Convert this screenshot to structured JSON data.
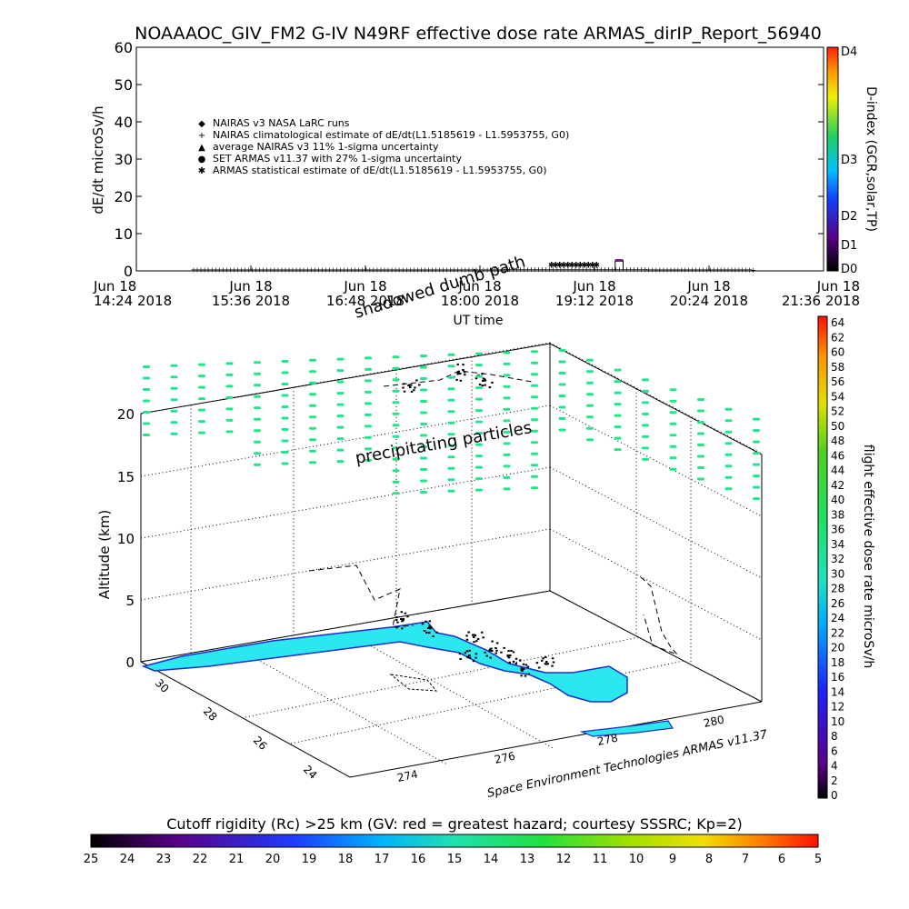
{
  "header": {
    "title": "NOAAAOC_GIV_FM2 G-IV    N49RF   effective dose rate ARMAS_dirIP_Report_56940"
  },
  "top_panel": {
    "ylabel": "dE/dt microSv/h",
    "xlabel": "UT time",
    "dindex_label": "D-index (GCR,solar,TP)",
    "dindex_ticks": [
      "D4",
      "D3",
      "D2",
      "D1",
      "D0"
    ],
    "legend": [
      {
        "symbol": "◆",
        "text": "NAIRAS v3 NASA LaRC runs"
      },
      {
        "symbol": "+",
        "text": "NAIRAS climatological estimate of dE/dt(L1.5185619 - L1.5953755, G0)"
      },
      {
        "symbol": "▲",
        "text": "average NAIRAS v3 11% 1-sigma uncertainty"
      },
      {
        "symbol": "●",
        "text": "SET ARMAS v11.37 with 27% 1-sigma uncertainty"
      },
      {
        "symbol": "✱",
        "text": "ARMAS statistical estimate of dE/dt(L1.5185619 - L1.5953755, G0)"
      }
    ],
    "time_ticks": [
      {
        "l1": "Jun 18",
        "l2": "14:24 2018"
      },
      {
        "l1": "Jun 18",
        "l2": "15:36 2018"
      },
      {
        "l1": "Jun 18",
        "l2": "16:48 2018"
      },
      {
        "l1": "Jun 18",
        "l2": "18:00 2018"
      },
      {
        "l1": "Jun 18",
        "l2": "19:12 2018"
      },
      {
        "l1": "Jun 18",
        "l2": "20:24 2018"
      },
      {
        "l1": "Jun 18",
        "l2": "21:36 2018"
      }
    ]
  },
  "map3d": {
    "shadowed_label": "shadowed dumb path",
    "precip_label": "precipitating particles",
    "altitude_label": "Altitude (km)",
    "lat_ticks": [
      "30",
      "28",
      "26",
      "24"
    ],
    "lon_ticks": [
      "274",
      "276",
      "278",
      "280"
    ],
    "credit": "Space Environment Technologies ARMAS v11.37",
    "right_colorbar_label": "flight effective dose rate microSv/h",
    "right_colorbar_ticks": [
      "64",
      "62",
      "60",
      "58",
      "56",
      "54",
      "52",
      "50",
      "48",
      "46",
      "44",
      "42",
      "40",
      "38",
      "36",
      "34",
      "32",
      "30",
      "28",
      "26",
      "24",
      "22",
      "20",
      "18",
      "16",
      "14",
      "12",
      "10",
      "8",
      "6",
      "4",
      "2",
      "0"
    ]
  },
  "bottom_bar": {
    "label": "Cutoff rigidity (Rc) >25 km (GV: red = greatest hazard; courtesy SSSRC; Kp=2)",
    "ticks": [
      "25",
      "24",
      "23",
      "22",
      "21",
      "20",
      "19",
      "18",
      "17",
      "16",
      "15",
      "14",
      "13",
      "12",
      "11",
      "10",
      "9",
      "8",
      "7",
      "6",
      "5"
    ]
  },
  "colors": {
    "land": "#2ce6f0",
    "coast": "#1a2fd0",
    "precip": "#22e68c",
    "flight_marker": "#7a1a8c"
  },
  "chart_data": [
    {
      "type": "scatter",
      "title": "NOAAAOC_GIV_FM2 G-IV    N49RF   effective dose rate ARMAS_dirIP_Report_56940",
      "xlabel": "UT time",
      "ylabel": "dE/dt microSv/h",
      "xlim": [
        "2018-06-18 14:24",
        "2018-06-18 21:36"
      ],
      "ylim": [
        0,
        60
      ],
      "yticks": [
        0,
        10,
        20,
        30,
        40,
        50,
        60
      ],
      "series": [
        {
          "name": "NAIRAS climatological estimate of dE/dt(L1.5185619 - L1.5953755, G0)",
          "x": [
            "2018-06-18 15:00",
            "2018-06-18 16:00",
            "2018-06-18 17:00",
            "2018-06-18 18:00",
            "2018-06-18 19:00",
            "2018-06-18 20:00",
            "2018-06-18 20:54"
          ],
          "y": [
            0.4,
            0.4,
            0.4,
            0.4,
            0.5,
            0.4,
            0.3
          ]
        },
        {
          "name": "ARMAS statistical estimate of dE/dt(L1.5185619 - L1.5953755, G0)",
          "x": [
            "2018-06-18 18:45",
            "2018-06-18 19:00",
            "2018-06-18 19:15"
          ],
          "y": [
            1.5,
            1.6,
            1.5
          ]
        },
        {
          "name": "SET ARMAS v11.37 with 27% 1-sigma uncertainty",
          "x": [
            "2018-06-18 19:25",
            "2018-06-18 19:30"
          ],
          "y": [
            2.8,
            2.8
          ]
        }
      ]
    },
    {
      "type": "scatter",
      "zlabel": "Altitude (km)",
      "zticks": [
        0,
        5,
        10,
        15,
        20
      ],
      "lat_ticks": [
        30,
        28,
        26,
        24
      ],
      "lon_ticks": [
        274,
        276,
        278,
        280
      ]
    }
  ]
}
